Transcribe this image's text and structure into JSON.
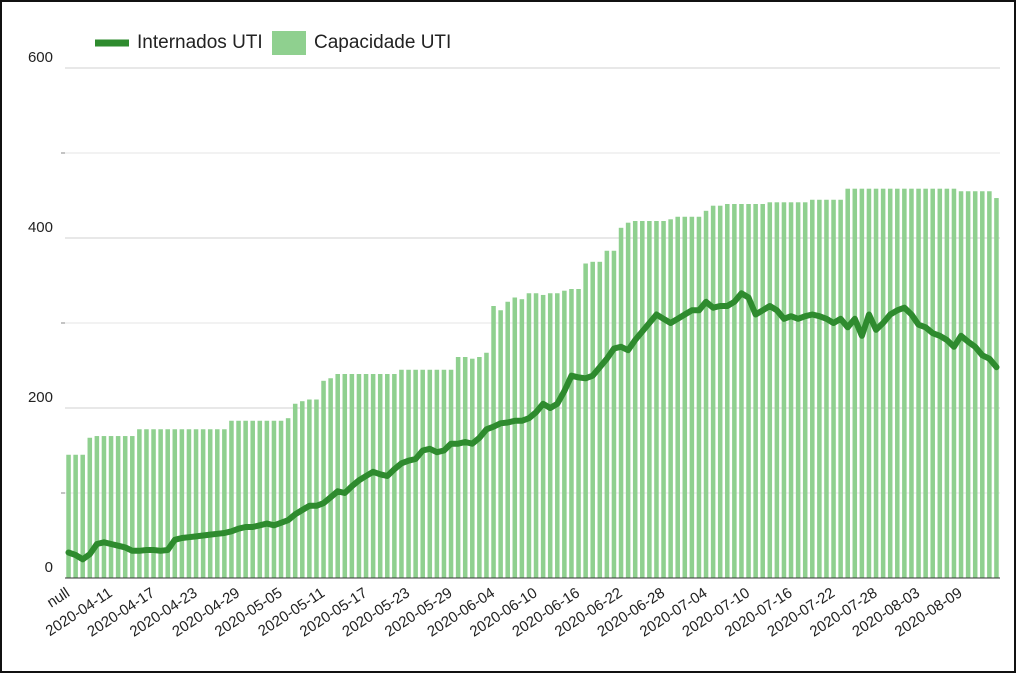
{
  "chart_data": {
    "type": "bar_line",
    "categories": [
      "null",
      null,
      null,
      null,
      null,
      null,
      "2020-04-11",
      null,
      null,
      null,
      null,
      null,
      "2020-04-17",
      null,
      null,
      null,
      null,
      null,
      "2020-04-23",
      null,
      null,
      null,
      null,
      null,
      "2020-04-29",
      null,
      null,
      null,
      null,
      null,
      "2020-05-05",
      null,
      null,
      null,
      null,
      null,
      "2020-05-11",
      null,
      null,
      null,
      null,
      null,
      "2020-05-17",
      null,
      null,
      null,
      null,
      null,
      "2020-05-23",
      null,
      null,
      null,
      null,
      null,
      "2020-05-29",
      null,
      null,
      null,
      null,
      null,
      "2020-06-04",
      null,
      null,
      null,
      null,
      null,
      "2020-06-10",
      null,
      null,
      null,
      null,
      null,
      "2020-06-16",
      null,
      null,
      null,
      null,
      null,
      "2020-06-22",
      null,
      null,
      null,
      null,
      null,
      "2020-06-28",
      null,
      null,
      null,
      null,
      null,
      "2020-07-04",
      null,
      null,
      null,
      null,
      null,
      "2020-07-10",
      null,
      null,
      null,
      null,
      null,
      "2020-07-16",
      null,
      null,
      null,
      null,
      null,
      "2020-07-22",
      null,
      null,
      null,
      null,
      null,
      "2020-07-28",
      null,
      null,
      null,
      null,
      null,
      "2020-08-03",
      null,
      null,
      null,
      null,
      null,
      "2020-08-09",
      null,
      null,
      null,
      null,
      null
    ],
    "series": [
      {
        "name": "Internados UTI",
        "kind": "line",
        "color": "#2e8b2e",
        "values": [
          30,
          27,
          22,
          28,
          40,
          42,
          40,
          38,
          36,
          32,
          32,
          33,
          33,
          32,
          33,
          45,
          47,
          48,
          49,
          50,
          51,
          52,
          53,
          55,
          58,
          60,
          60,
          62,
          64,
          62,
          65,
          68,
          75,
          80,
          85,
          85,
          88,
          95,
          102,
          100,
          108,
          115,
          120,
          125,
          122,
          120,
          128,
          135,
          138,
          140,
          150,
          152,
          148,
          150,
          158,
          158,
          160,
          158,
          165,
          175,
          178,
          182,
          183,
          185,
          185,
          188,
          195,
          205,
          200,
          205,
          220,
          238,
          236,
          235,
          238,
          248,
          258,
          270,
          272,
          268,
          280,
          290,
          300,
          310,
          305,
          300,
          305,
          310,
          315,
          315,
          325,
          318,
          320,
          320,
          325,
          335,
          330,
          310,
          315,
          320,
          315,
          305,
          308,
          305,
          308,
          310,
          308,
          305,
          300,
          305,
          295,
          305,
          285,
          310,
          292,
          300,
          310,
          315,
          318,
          310,
          298,
          295,
          288,
          285,
          280,
          272,
          285,
          278,
          272,
          262,
          258,
          248
        ]
      },
      {
        "name": "Capacidade UTI",
        "kind": "bar",
        "color": "#8fd08f",
        "values": [
          145,
          145,
          145,
          165,
          167,
          167,
          167,
          167,
          167,
          167,
          175,
          175,
          175,
          175,
          175,
          175,
          175,
          175,
          175,
          175,
          175,
          175,
          175,
          185,
          185,
          185,
          185,
          185,
          185,
          185,
          185,
          188,
          205,
          208,
          210,
          210,
          232,
          235,
          240,
          240,
          240,
          240,
          240,
          240,
          240,
          240,
          240,
          245,
          245,
          245,
          245,
          245,
          245,
          245,
          245,
          260,
          260,
          258,
          260,
          265,
          320,
          315,
          325,
          330,
          328,
          335,
          335,
          333,
          335,
          335,
          338,
          340,
          340,
          370,
          372,
          372,
          385,
          385,
          412,
          418,
          420,
          420,
          420,
          420,
          420,
          422,
          425,
          425,
          425,
          425,
          432,
          438,
          438,
          440,
          440,
          440,
          440,
          440,
          440,
          442,
          442,
          442,
          442,
          442,
          442,
          445,
          445,
          445,
          445,
          445,
          458,
          458,
          458,
          458,
          458,
          458,
          458,
          458,
          458,
          458,
          458,
          458,
          458,
          458,
          458,
          458,
          455,
          455,
          455,
          455,
          455,
          447
        ]
      }
    ],
    "ylim": [
      0,
      600
    ],
    "yticks": [
      0,
      200,
      400,
      600
    ],
    "minor_yticks": [
      100,
      300,
      500
    ],
    "grid": true,
    "legend": "top"
  }
}
